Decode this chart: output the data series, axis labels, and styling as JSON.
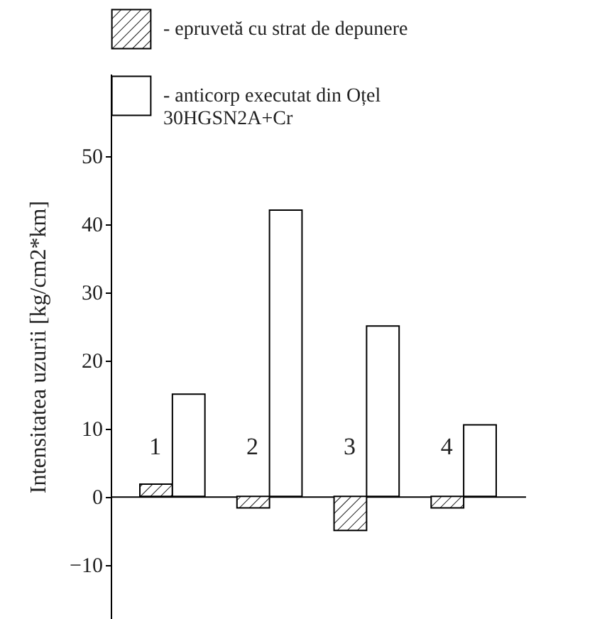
{
  "chart_data": {
    "type": "bar",
    "ylabel": "Intensitatea uzurii [kg/cm2*km]",
    "categories": [
      "1",
      "2",
      "3",
      "4"
    ],
    "series": [
      {
        "name": "- epruvetă cu strat de depunere",
        "color": "#000000",
        "values": [
          1.8,
          -1.7,
          -5,
          -1.7
        ]
      },
      {
        "name": "- anticorp executat din Oțel 30HGSN2A+Cr",
        "color": "#ffffff",
        "values": [
          15,
          42,
          25,
          10.5
        ]
      }
    ],
    "ylim": [
      -18,
      62
    ],
    "yticks": [
      -10,
      0,
      10,
      20,
      30,
      40,
      50
    ],
    "grid": false,
    "legend": "top"
  }
}
